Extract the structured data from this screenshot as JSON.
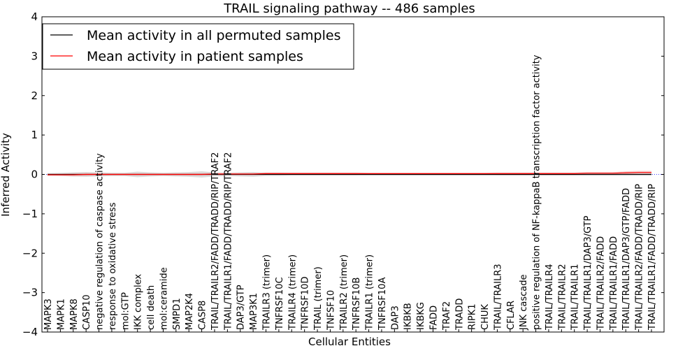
{
  "chart_data": {
    "type": "line",
    "title": "TRAIL signaling pathway -- 486 samples",
    "xlabel": "Cellular Entities",
    "ylabel": "Inferred Activity",
    "ylim": [
      -4,
      4
    ],
    "yticks": [
      "−4",
      "−3",
      "−2",
      "−1",
      "0",
      "1",
      "2",
      "3",
      "4"
    ],
    "legend_position": "top-left",
    "categories": [
      "MAPK3",
      "MAPK1",
      "MAPK8",
      "CASP10",
      "negative regulation of caspase activity",
      "response to oxidative stress",
      "mol:GTP",
      "IKK complex",
      "cell death",
      "mol:ceramide",
      "SMPD1",
      "MAP2K4",
      "CASP8",
      "TRAIL/TRAILR2/FADD/TRADD/RIP/TRAF2",
      "TRAIL/TRAILR1/FADD/TRADD/RIP/TRAF2",
      "DAP3/GTP",
      "MAP3K1",
      "TRAILR3 (trimer)",
      "TNFRSF10C",
      "TRAILR4 (trimer)",
      "TNFRSF10D",
      "TRAIL (trimer)",
      "TNFSF10",
      "TRAILR2 (trimer)",
      "TNFRSF10B",
      "TRAILR1 (trimer)",
      "TNFRSF10A",
      "DAP3",
      "IKBKB",
      "IKBKG",
      "FADD",
      "TRAF2",
      "TRADD",
      "RIPK1",
      "CHUK",
      "TRAIL/TRAILR3",
      "CFLAR",
      "JNK cascade",
      "positive regulation of NF-kappaB transcription factor activity",
      "TRAIL/TRAILR4",
      "TRAIL/TRAILR2",
      "TRAIL/TRAILR1",
      "TRAIL/TRAILR1/DAP3/GTP",
      "TRAIL/TRAILR2/FADD",
      "TRAIL/TRAILR1/FADD",
      "TRAIL/TRAILR1/DAP3/GTP/FADD",
      "TRAIL/TRAILR2/FADD/TRADD/RIP",
      "TRAIL/TRAILR1/FADD/TRADD/RIP"
    ],
    "series": [
      {
        "name": "Mean activity in all permuted samples",
        "color": "#000000",
        "values": [
          0,
          0,
          0,
          0,
          0,
          0,
          0,
          0,
          0,
          0,
          0,
          0,
          0,
          0,
          0,
          0,
          0,
          0,
          0,
          0,
          0,
          0,
          0,
          0,
          0,
          0,
          0,
          0,
          0,
          0,
          0,
          0,
          0,
          0,
          0,
          0,
          0,
          0,
          0,
          0,
          0,
          0,
          0,
          0,
          0,
          0,
          0,
          0
        ],
        "spread": [
          0.03,
          0.04,
          0.05,
          0.06,
          0.05,
          0.04,
          0.04,
          0.07,
          0.05,
          0.04,
          0.05,
          0.06,
          0.08,
          0.05,
          0.04,
          0.05,
          0.06,
          0.04,
          0.04,
          0.03,
          0.03,
          0.03,
          0.03,
          0.03,
          0.03,
          0.03,
          0.03,
          0.03,
          0.03,
          0.03,
          0.03,
          0.03,
          0.03,
          0.03,
          0.03,
          0.03,
          0.03,
          0.03,
          0.03,
          0.03,
          0.03,
          0.03,
          0.03,
          0.03,
          0.03,
          0.03,
          0.03,
          0.03
        ]
      },
      {
        "name": "Mean activity in patient samples",
        "color": "#ff0000",
        "values": [
          -0.01,
          -0.01,
          -0.01,
          0,
          0,
          0,
          0,
          0,
          0,
          0,
          0,
          0,
          0,
          0.01,
          0.01,
          0.01,
          0.01,
          0.02,
          0.02,
          0.02,
          0.02,
          0.02,
          0.02,
          0.02,
          0.02,
          0.02,
          0.02,
          0.02,
          0.02,
          0.02,
          0.02,
          0.02,
          0.02,
          0.02,
          0.02,
          0.02,
          0.02,
          0.02,
          0.02,
          0.02,
          0.02,
          0.02,
          0.03,
          0.03,
          0.03,
          0.04,
          0.05,
          0.05
        ],
        "spread": [
          0.03,
          0.03,
          0.04,
          0.04,
          0.03,
          0.03,
          0.03,
          0.03,
          0.03,
          0.03,
          0.03,
          0.03,
          0.03,
          0.03,
          0.03,
          0.03,
          0.03,
          0.03,
          0.03,
          0.03,
          0.03,
          0.03,
          0.03,
          0.03,
          0.03,
          0.02,
          0.02,
          0.02,
          0.02,
          0.02,
          0.02,
          0.02,
          0.02,
          0.02,
          0.02,
          0.03,
          0.03,
          0.03,
          0.03,
          0.03,
          0.03,
          0.03,
          0.03,
          0.03,
          0.03,
          0.04,
          0.04,
          0.04
        ]
      }
    ],
    "colors": {
      "band_permuted": "#b3b3b3",
      "band_patient": "#e6a0a0",
      "zero_line": "#0000ff"
    }
  }
}
